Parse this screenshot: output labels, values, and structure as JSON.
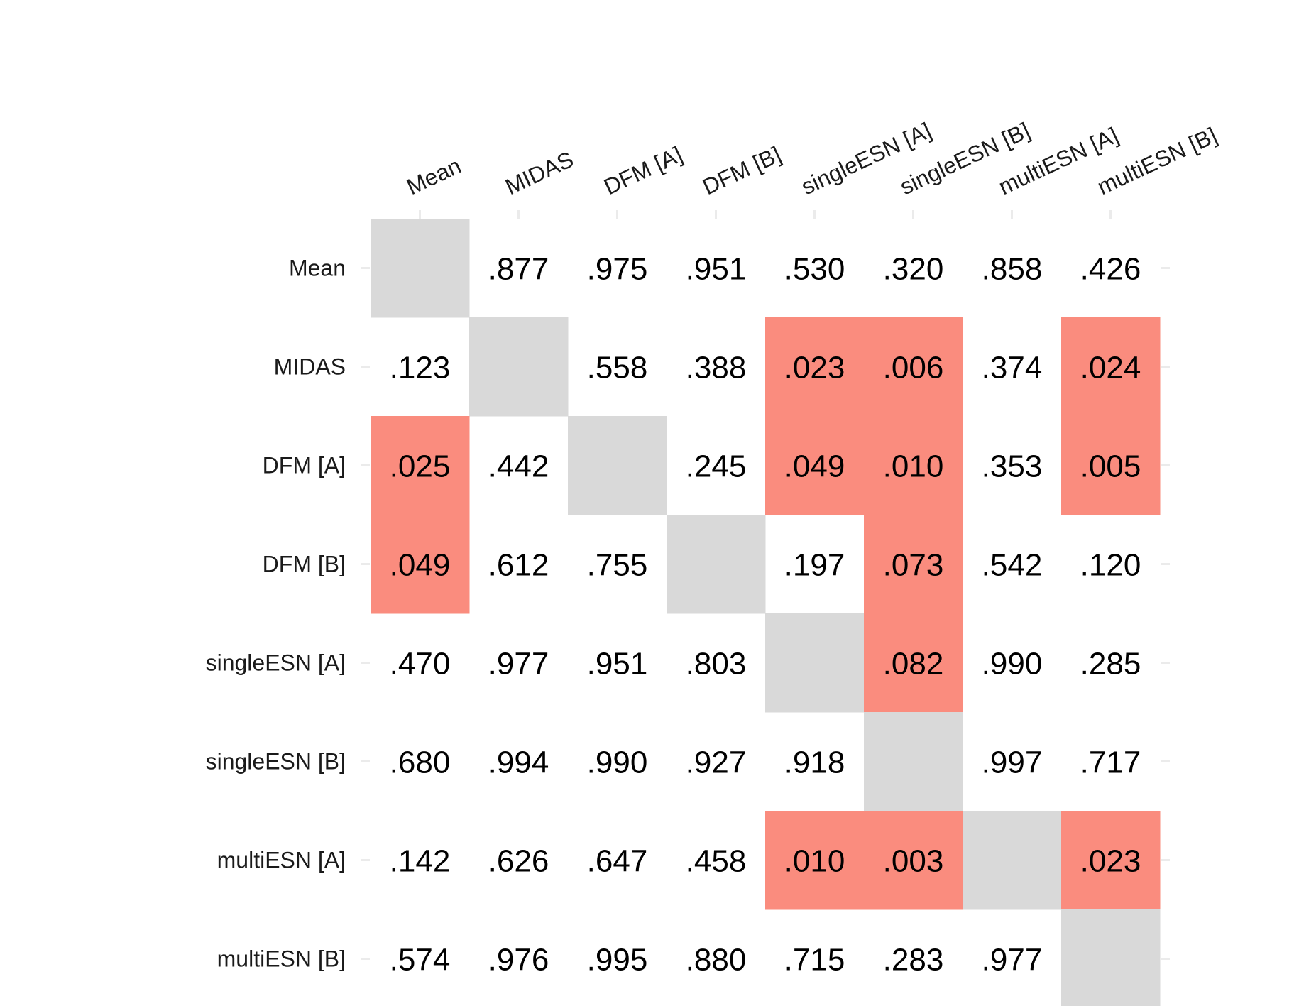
{
  "chart_data": {
    "type": "heatmap",
    "rows": [
      "Mean",
      "MIDAS",
      "DFM [A]",
      "DFM [B]",
      "singleESN [A]",
      "singleESN [B]",
      "multiESN [A]",
      "multiESN [B]"
    ],
    "columns": [
      "Mean",
      "MIDAS",
      "DFM [A]",
      "DFM [B]",
      "singleESN [A]",
      "singleESN [B]",
      "multiESN [A]",
      "multiESN [B]"
    ],
    "values": [
      [
        null,
        ".877",
        ".975",
        ".951",
        ".530",
        ".320",
        ".858",
        ".426"
      ],
      [
        ".123",
        null,
        ".558",
        ".388",
        ".023",
        ".006",
        ".374",
        ".024"
      ],
      [
        ".025",
        ".442",
        null,
        ".245",
        ".049",
        ".010",
        ".353",
        ".005"
      ],
      [
        ".049",
        ".612",
        ".755",
        null,
        ".197",
        ".073",
        ".542",
        ".120"
      ],
      [
        ".470",
        ".977",
        ".951",
        ".803",
        null,
        ".082",
        ".990",
        ".285"
      ],
      [
        ".680",
        ".994",
        ".990",
        ".927",
        ".918",
        null,
        ".997",
        ".717"
      ],
      [
        ".142",
        ".626",
        ".647",
        ".458",
        ".010",
        ".003",
        null,
        ".023"
      ],
      [
        ".574",
        ".976",
        ".995",
        ".880",
        ".715",
        ".283",
        ".977",
        null
      ]
    ],
    "highlight_threshold": 0.1,
    "colors": {
      "highlight": "#fa8c7e",
      "diagonal": "#d9d9d9",
      "background": "#ffffff",
      "tick": "#ebebeb"
    },
    "column_labels_position": "top",
    "column_labels_rotated": true,
    "grid": false,
    "legend": "none"
  }
}
